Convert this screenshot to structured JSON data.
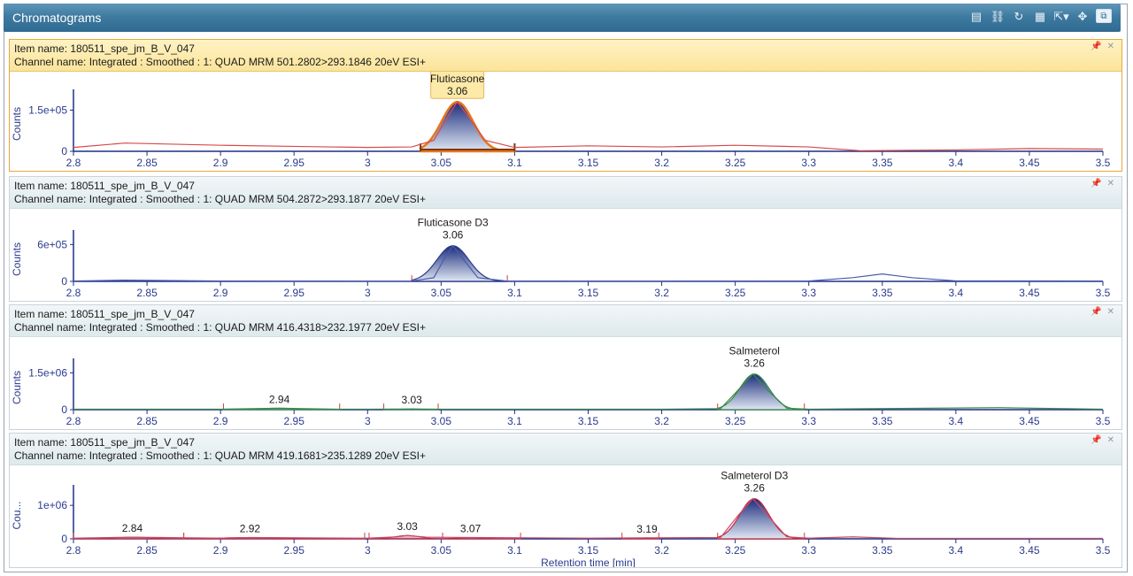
{
  "window": {
    "title": "Chromatograms",
    "toolbar_icons": [
      "table-view-icon",
      "link-icon",
      "refresh-icon",
      "grid-icon",
      "export-icon",
      "move-icon",
      "restore-icon"
    ]
  },
  "colors": {
    "titlebar": "#3f7aa0",
    "axis": "#1e2f86",
    "tick_label": "#2a3a8c",
    "peak_fill_top": "#1b2c7c",
    "peak_fill_bottom": "#dfe6f2",
    "selected_header": "#fbe49a"
  },
  "panels": [
    {
      "item_name": "Item name: 180511_spe_jm_B_V_047",
      "channel_name": "Channel name: Integrated : Smoothed :  1: QUAD MRM 501.2802>293.1846 20eV ESI+",
      "selected": true,
      "chart_data": {
        "type": "line",
        "ylabel": "Counts",
        "xlim": [
          2.8,
          3.5
        ],
        "ylim": [
          0,
          200000
        ],
        "yticks": [
          {
            "value": 0,
            "label": "0"
          },
          {
            "value": 150000,
            "label": "1.5e+05"
          }
        ],
        "xticks": [
          "2.8",
          "2.85",
          "2.9",
          "2.95",
          "3",
          "3.05",
          "3.1",
          "3.15",
          "3.2",
          "3.25",
          "3.3",
          "3.35",
          "3.4",
          "3.45",
          "3.5"
        ],
        "trace_color": "#d84a4a",
        "peak_outline": "#e8761c",
        "series": [
          {
            "x": [
              2.8,
              2.835,
              2.9,
              2.95,
              3.0,
              3.03,
              3.045,
              3.055,
              3.061,
              3.068,
              3.08,
              3.1,
              3.15,
              3.2,
              3.25,
              3.3,
              3.335,
              3.4,
              3.45,
              3.5
            ],
            "y": [
              14000,
              30000,
              22000,
              18000,
              14000,
              16000,
              40000,
              130000,
              180000,
              130000,
              40000,
              14000,
              20000,
              16000,
              22000,
              16000,
              2000,
              5000,
              10000,
              8000
            ]
          }
        ],
        "peaks": [
          {
            "name": "Fluticasone",
            "rt_label": "3.06",
            "apex": 3.061,
            "start": 3.036,
            "end": 3.1,
            "height": 180000,
            "boxed": true
          }
        ]
      }
    },
    {
      "item_name": "Item name: 180511_spe_jm_B_V_047",
      "channel_name": "Channel name: Integrated : Smoothed :  1: QUAD MRM 504.2872>293.1877 20eV ESI+",
      "selected": false,
      "chart_data": {
        "type": "line",
        "ylabel": "Counts",
        "xlim": [
          2.8,
          3.5
        ],
        "ylim": [
          0,
          720000
        ],
        "yticks": [
          {
            "value": 0,
            "label": "0"
          },
          {
            "value": 600000,
            "label": "6e+05"
          }
        ],
        "xticks": [
          "2.8",
          "2.85",
          "2.9",
          "2.95",
          "3",
          "3.05",
          "3.1",
          "3.15",
          "3.2",
          "3.25",
          "3.3",
          "3.35",
          "3.4",
          "3.45",
          "3.5"
        ],
        "trace_color": "#4a5aa8",
        "peak_outline": "#2a3a8c",
        "series": [
          {
            "x": [
              2.8,
              2.835,
              2.9,
              2.95,
              3.0,
              3.03,
              3.045,
              3.052,
              3.058,
              3.065,
              3.075,
              3.095,
              3.2,
              3.3,
              3.33,
              3.35,
              3.37,
              3.4,
              3.5
            ],
            "y": [
              5000,
              20000,
              5000,
              4000,
              3000,
              4000,
              60000,
              360000,
              580000,
              360000,
              60000,
              4000,
              3000,
              5000,
              60000,
              120000,
              60000,
              8000,
              5000
            ]
          }
        ],
        "peaks": [
          {
            "name": "Fluticasone D3",
            "rt_label": "3.06",
            "apex": 3.058,
            "start": 3.03,
            "end": 3.095,
            "height": 580000,
            "boxed": false
          }
        ]
      }
    },
    {
      "item_name": "Item name: 180511_spe_jm_B_V_047",
      "channel_name": "Channel name: Integrated : Smoothed :  1: QUAD MRM 416.4318>232.1977 20eV ESI+",
      "selected": false,
      "chart_data": {
        "type": "line",
        "ylabel": "Counts",
        "xlim": [
          2.8,
          3.5
        ],
        "ylim": [
          0,
          1800000
        ],
        "yticks": [
          {
            "value": 0,
            "label": "0"
          },
          {
            "value": 1500000,
            "label": "1.5e+06"
          }
        ],
        "xticks": [
          "2.8",
          "2.85",
          "2.9",
          "2.95",
          "3",
          "3.05",
          "3.1",
          "3.15",
          "3.2",
          "3.25",
          "3.3",
          "3.35",
          "3.4",
          "3.45",
          "3.5"
        ],
        "trace_color": "#3a8a4a",
        "peak_outline": "#3a8a4a",
        "series": [
          {
            "x": [
              2.8,
              2.9,
              2.94,
              2.98,
              3.0,
              3.03,
              3.05,
              3.2,
              3.24,
              3.252,
              3.262,
              3.272,
              3.285,
              3.3,
              3.43,
              3.5
            ],
            "y": [
              20000,
              20000,
              60000,
              20000,
              20000,
              30000,
              20000,
              20000,
              40000,
              800000,
              1450000,
              800000,
              60000,
              20000,
              80000,
              20000
            ]
          }
        ],
        "peaks": [
          {
            "name": "Salmeterol",
            "rt_label": "3.26",
            "apex": 3.263,
            "start": 3.238,
            "end": 3.297,
            "height": 1450000,
            "boxed": false
          },
          {
            "name": "",
            "rt_label": "2.94",
            "apex": 2.94,
            "start": 2.902,
            "end": 2.981,
            "height": 60000,
            "boxed": false
          },
          {
            "name": "",
            "rt_label": "3.03",
            "apex": 3.03,
            "start": 3.011,
            "end": 3.048,
            "height": 30000,
            "boxed": false
          }
        ]
      }
    },
    {
      "item_name": "Item name: 180511_spe_jm_B_V_047",
      "channel_name": "Channel name: Integrated : Smoothed :  1: QUAD MRM 419.1681>235.1289 20eV ESI+",
      "selected": false,
      "chart_data": {
        "type": "line",
        "ylabel": "Cou...",
        "xlabel": "Retention time [min]",
        "xlim": [
          2.8,
          3.5
        ],
        "ylim": [
          0,
          1400000
        ],
        "yticks": [
          {
            "value": 0,
            "label": "0"
          },
          {
            "value": 1000000,
            "label": "1e+06"
          }
        ],
        "xticks": [
          "2.8",
          "2.85",
          "2.9",
          "2.95",
          "3",
          "3.05",
          "3.1",
          "3.15",
          "3.2",
          "3.25",
          "3.3",
          "3.35",
          "3.4",
          "3.45",
          "3.5"
        ],
        "trace_color": "#c84a6a",
        "peak_outline": "#c8283a",
        "series": [
          {
            "x": [
              2.8,
              2.84,
              2.9,
              2.92,
              3.0,
              3.02,
              3.027,
              3.04,
              3.07,
              3.15,
              3.19,
              3.24,
              3.252,
              3.262,
              3.272,
              3.285,
              3.3,
              3.33,
              3.36,
              3.5
            ],
            "y": [
              20000,
              50000,
              20000,
              40000,
              20000,
              60000,
              100000,
              50000,
              40000,
              20000,
              30000,
              40000,
              700000,
              1200000,
              700000,
              60000,
              20000,
              60000,
              15000,
              15000
            ]
          }
        ],
        "peaks": [
          {
            "name": "Salmeterol D3",
            "rt_label": "3.26",
            "apex": 3.263,
            "start": 3.238,
            "end": 3.297,
            "height": 1200000,
            "boxed": false
          },
          {
            "name": "",
            "rt_label": "2.84",
            "apex": 2.84,
            "start": 2.8,
            "end": 2.875,
            "height": 50000,
            "boxed": false
          },
          {
            "name": "",
            "rt_label": "2.92",
            "apex": 2.92,
            "start": 2.875,
            "end": 2.998,
            "height": 40000,
            "boxed": false
          },
          {
            "name": "",
            "rt_label": "3.03",
            "apex": 3.027,
            "start": 3.001,
            "end": 3.051,
            "height": 100000,
            "boxed": false
          },
          {
            "name": "",
            "rt_label": "3.07",
            "apex": 3.07,
            "start": 3.051,
            "end": 3.104,
            "height": 40000,
            "boxed": false
          },
          {
            "name": "",
            "rt_label": "3.19",
            "apex": 3.19,
            "start": 3.173,
            "end": 3.198,
            "height": 30000,
            "boxed": false
          }
        ]
      }
    }
  ]
}
